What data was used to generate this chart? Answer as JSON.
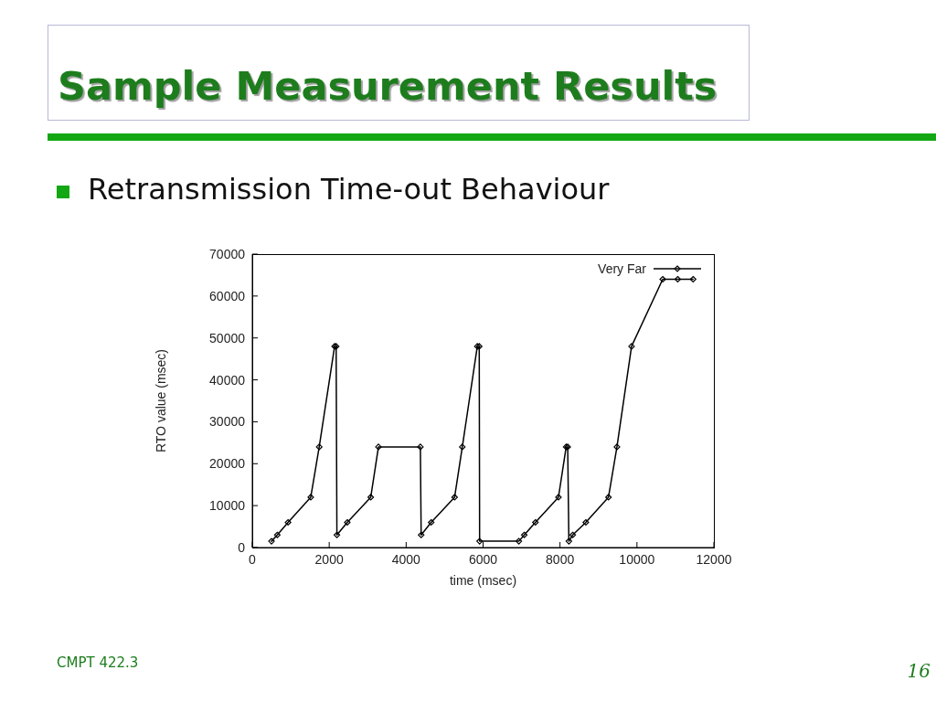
{
  "chart_data": {
    "type": "line",
    "title": "Sample Measurement Results",
    "subtitle": "Retransmission Time-out Behaviour",
    "xlabel": "time (msec)",
    "ylabel": "RTO value (msec)",
    "x": [
      500,
      650,
      930,
      1520,
      1740,
      2140,
      2180,
      2200,
      2470,
      3080,
      3280,
      4370,
      4390,
      4650,
      5260,
      5460,
      5850,
      5900,
      5910,
      6930,
      7070,
      7360,
      7960,
      8160,
      8200,
      8230,
      8330,
      8670,
      9260,
      9480,
      9860,
      10670,
      11060,
      11460
    ],
    "series": [
      {
        "name": "Very Far",
        "color": "#000000",
        "values": [
          1500,
          3000,
          6000,
          12000,
          24000,
          48000,
          48000,
          3000,
          6000,
          12000,
          24000,
          24000,
          3000,
          6000,
          12000,
          24000,
          48000,
          48000,
          1500,
          1500,
          3000,
          6000,
          12000,
          24000,
          24000,
          1500,
          3000,
          6000,
          12000,
          24000,
          48000,
          64000,
          64000,
          64000
        ]
      }
    ],
    "xlim": [
      0,
      12000
    ],
    "xticks": [
      0,
      2000,
      4000,
      6000,
      8000,
      10000,
      12000
    ],
    "ylim": [
      0,
      70000
    ],
    "yticks": [
      0,
      10000,
      20000,
      30000,
      40000,
      50000,
      60000,
      70000
    ],
    "legend": "top right",
    "marker": "diamond",
    "annotations": [
      "CMPT 422.3",
      "16"
    ]
  }
}
